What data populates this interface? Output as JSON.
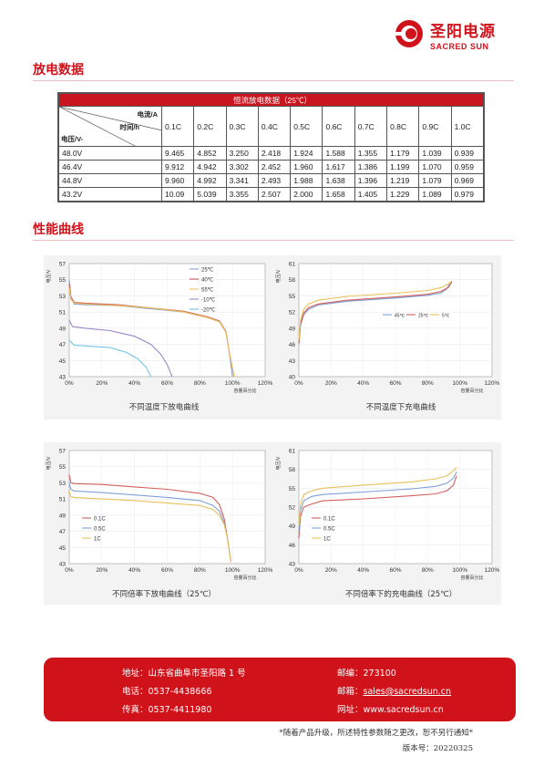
{
  "brand": {
    "name_cn": "圣阳电源",
    "name_en": "SACRED SUN",
    "color": "#d0121b"
  },
  "sections": {
    "discharge_data": "放电数据",
    "performance_curves": "性能曲线"
  },
  "table": {
    "title": "恒流放电数据（25℃）",
    "header_current": "电流/A",
    "header_time": "时间/h",
    "header_voltage": "电压/V-",
    "rates": [
      "0.1C",
      "0.2C",
      "0.3C",
      "0.4C",
      "0.5C",
      "0.6C",
      "0.7C",
      "0.8C",
      "0.9C",
      "1.0C"
    ],
    "rows": [
      {
        "voltage": "48.0V",
        "values": [
          "9.465",
          "4.852",
          "3.250",
          "2.418",
          "1.924",
          "1.588",
          "1.355",
          "1.179",
          "1.039",
          "0.939"
        ]
      },
      {
        "voltage": "46.4V",
        "values": [
          "9.912",
          "4.942",
          "3.302",
          "2.452",
          "1.960",
          "1.617",
          "1.386",
          "1.199",
          "1.070",
          "0.959"
        ]
      },
      {
        "voltage": "44.8V",
        "values": [
          "9.960",
          "4.992",
          "3.341",
          "2.493",
          "1.988",
          "1.638",
          "1.396",
          "1.219",
          "1.079",
          "0.969"
        ]
      },
      {
        "voltage": "43.2V",
        "values": [
          "10.09",
          "5.039",
          "3.355",
          "2.507",
          "2.000",
          "1.658",
          "1.405",
          "1.229",
          "1.089",
          "0.979"
        ]
      }
    ]
  },
  "chart_data": [
    {
      "type": "line",
      "title": "不同温度下放电曲线",
      "ylabel": "电压/V",
      "xlabel": "容量百分比",
      "ylim": [
        43,
        57
      ],
      "yticks": [
        "57",
        "55",
        "53",
        "51",
        "49",
        "47",
        "45",
        "43"
      ],
      "xlim": [
        0,
        120
      ],
      "xticks": [
        "0%",
        "20%",
        "40%",
        "60%",
        "80%",
        "100%",
        "120%"
      ],
      "legend_position": "top-right",
      "series": [
        {
          "name": "25℃",
          "color": "#8aa0d8",
          "x": [
            0,
            1,
            3,
            10,
            30,
            50,
            70,
            85,
            92,
            96,
            98,
            100
          ],
          "y": [
            55.0,
            52.8,
            52.0,
            51.9,
            51.8,
            51.4,
            51.0,
            50.3,
            49.8,
            48.5,
            46.0,
            43.0
          ]
        },
        {
          "name": "40℃",
          "color": "#d0605c",
          "x": [
            0,
            1,
            3,
            10,
            30,
            50,
            70,
            85,
            92,
            96,
            98,
            101
          ],
          "y": [
            54.5,
            52.9,
            52.2,
            52.1,
            51.9,
            51.5,
            51.1,
            50.4,
            49.9,
            48.6,
            46.0,
            43.0
          ]
        },
        {
          "name": "55℃",
          "color": "#e8c15a",
          "x": [
            0,
            1,
            3,
            10,
            30,
            50,
            70,
            85,
            92,
            96,
            98,
            101
          ],
          "y": [
            54.0,
            52.6,
            52.1,
            52.0,
            51.8,
            51.5,
            51.0,
            50.3,
            49.8,
            48.5,
            46.0,
            43.0
          ]
        },
        {
          "name": "-10℃",
          "color": "#9a88c8",
          "x": [
            0,
            2,
            10,
            25,
            40,
            50,
            56,
            60,
            63
          ],
          "y": [
            50.0,
            49.2,
            49.0,
            48.7,
            48.0,
            47.0,
            45.8,
            44.5,
            43.0
          ]
        },
        {
          "name": "-20℃",
          "color": "#6fc4e8",
          "x": [
            0,
            3,
            10,
            25,
            35,
            42,
            47,
            50
          ],
          "y": [
            47.5,
            46.9,
            46.8,
            46.6,
            46.0,
            45.2,
            44.2,
            43.0
          ]
        }
      ]
    },
    {
      "type": "line",
      "title": "不同温度下充电曲线",
      "ylabel": "电压/V",
      "xlabel": "容量百分比",
      "ylim": [
        40,
        61
      ],
      "yticks": [
        "61",
        "58",
        "55",
        "52",
        "49",
        "46",
        "43",
        "40"
      ],
      "xlim": [
        0,
        120
      ],
      "xticks": [
        "0%",
        "20%",
        "40%",
        "60%",
        "80%",
        "100%",
        "120%"
      ],
      "legend_position": "center-right",
      "series": [
        {
          "name": "45℃",
          "color": "#7fa0d8",
          "x": [
            0,
            1,
            3,
            6,
            12,
            30,
            60,
            80,
            88,
            92,
            94
          ],
          "y": [
            46.0,
            49.5,
            51.5,
            52.5,
            53.3,
            54.0,
            54.6,
            55.1,
            55.5,
            56.3,
            57.6
          ]
        },
        {
          "name": "25℃",
          "color": "#d0605c",
          "x": [
            0,
            1,
            3,
            6,
            12,
            30,
            60,
            80,
            88,
            93,
            95
          ],
          "y": [
            46.2,
            49.8,
            51.8,
            52.8,
            53.5,
            54.2,
            54.8,
            55.3,
            55.8,
            56.6,
            57.6
          ]
        },
        {
          "name": "5℃",
          "color": "#e8c15a",
          "x": [
            0,
            1,
            3,
            6,
            12,
            30,
            60,
            80,
            88,
            93,
            95
          ],
          "y": [
            46.8,
            50.5,
            52.5,
            53.5,
            54.2,
            54.9,
            55.5,
            56.0,
            56.5,
            57.2,
            57.8
          ]
        }
      ]
    },
    {
      "type": "line",
      "title": "不同倍率下放电曲线（25℃）",
      "ylabel": "电压/V",
      "xlabel": "容量百分比",
      "ylim": [
        43,
        57
      ],
      "yticks": [
        "57",
        "55",
        "53",
        "51",
        "49",
        "47",
        "45",
        "43"
      ],
      "xlim": [
        0,
        120
      ],
      "xticks": [
        "0%",
        "20%",
        "40%",
        "60%",
        "80%",
        "100%",
        "120%"
      ],
      "legend_position": "bottom-left",
      "series": [
        {
          "name": "0.1C",
          "color": "#d0605c",
          "x": [
            0,
            1,
            3,
            20,
            40,
            60,
            80,
            88,
            92,
            95,
            97,
            99
          ],
          "y": [
            54.0,
            53.0,
            52.9,
            52.8,
            52.5,
            52.2,
            51.7,
            51.2,
            50.3,
            48.5,
            46.0,
            43.2
          ]
        },
        {
          "name": "0.5C",
          "color": "#7fa0d8",
          "x": [
            0,
            1,
            3,
            20,
            40,
            60,
            80,
            88,
            92,
            95,
            97,
            99
          ],
          "y": [
            53.0,
            52.2,
            52.0,
            51.8,
            51.5,
            51.2,
            50.8,
            50.2,
            49.5,
            48.0,
            46.0,
            43.2
          ]
        },
        {
          "name": "1C",
          "color": "#e8c15a",
          "x": [
            0,
            1,
            3,
            20,
            40,
            60,
            80,
            88,
            92,
            95,
            97,
            99
          ],
          "y": [
            52.0,
            51.3,
            51.2,
            51.0,
            50.8,
            50.5,
            50.2,
            49.7,
            49.0,
            47.8,
            46.0,
            43.2
          ]
        }
      ]
    },
    {
      "type": "line",
      "title": "不同倍率下的充电曲线（25℃）",
      "ylabel": "电压/V",
      "xlabel": "容量百分比",
      "ylim": [
        43,
        61
      ],
      "yticks": [
        "61",
        "58",
        "55",
        "52",
        "49",
        "46",
        "43"
      ],
      "xlim": [
        0,
        120
      ],
      "xticks": [
        "0%",
        "20%",
        "40%",
        "60%",
        "80%",
        "100%",
        "120%"
      ],
      "legend_position": "bottom-left",
      "series": [
        {
          "name": "0.1C",
          "color": "#d0605c",
          "x": [
            0,
            1,
            3,
            8,
            15,
            40,
            70,
            85,
            92,
            96,
            98
          ],
          "y": [
            47.0,
            50.5,
            52.0,
            52.5,
            53.0,
            53.3,
            53.8,
            54.1,
            54.6,
            55.5,
            57.0
          ]
        },
        {
          "name": "0.5C",
          "color": "#7fa0d8",
          "x": [
            0,
            1,
            3,
            8,
            15,
            40,
            70,
            85,
            92,
            96,
            98
          ],
          "y": [
            48.0,
            51.5,
            53.0,
            53.7,
            54.0,
            54.4,
            54.9,
            55.3,
            55.8,
            56.6,
            57.6
          ]
        },
        {
          "name": "1C",
          "color": "#e8c15a",
          "x": [
            0,
            1,
            3,
            8,
            15,
            40,
            70,
            85,
            92,
            96,
            98
          ],
          "y": [
            49.0,
            52.5,
            54.0,
            54.6,
            55.0,
            55.5,
            56.0,
            56.5,
            57.0,
            57.8,
            58.3
          ]
        }
      ]
    }
  ],
  "footer": {
    "address_label": "地址：",
    "address": "山东省曲阜市圣阳路 1 号",
    "postcode_label": "邮编：",
    "postcode": "273100",
    "phone_label": "电话：",
    "phone": "0537-4438666",
    "email_label": "邮箱：",
    "email": "sales@sacredsun.cn",
    "fax_label": "传真：",
    "fax": "0537-4411980",
    "website_label": "网址：",
    "website": "www.sacredsun.cn"
  },
  "note": "*随着产品升级，所述特性参数随之更改，恕不另行通知*",
  "version": "版本号：20220325"
}
